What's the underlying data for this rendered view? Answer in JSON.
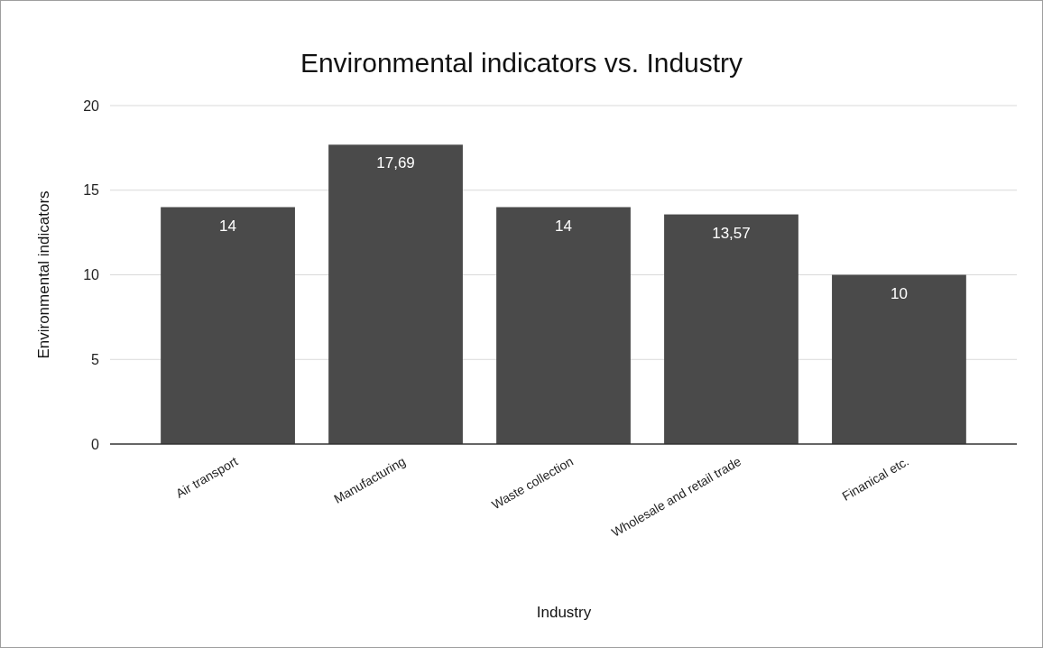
{
  "chart_data": {
    "type": "bar",
    "title": "Environmental indicators vs. Industry",
    "xlabel": "Industry",
    "ylabel": "Environmental indicators",
    "categories": [
      "Air transport",
      "Manufacturing",
      "Waste collection",
      "Wholesale and retail trade",
      "Finanical etc."
    ],
    "values": [
      14,
      17.69,
      14,
      13.57,
      10
    ],
    "value_labels": [
      "14",
      "17,69",
      "14",
      "13,57",
      "10"
    ],
    "color": "#4a4a4a",
    "ylim": [
      0,
      20
    ],
    "yticks": [
      0,
      5,
      10,
      15,
      20
    ],
    "grid": "y"
  }
}
